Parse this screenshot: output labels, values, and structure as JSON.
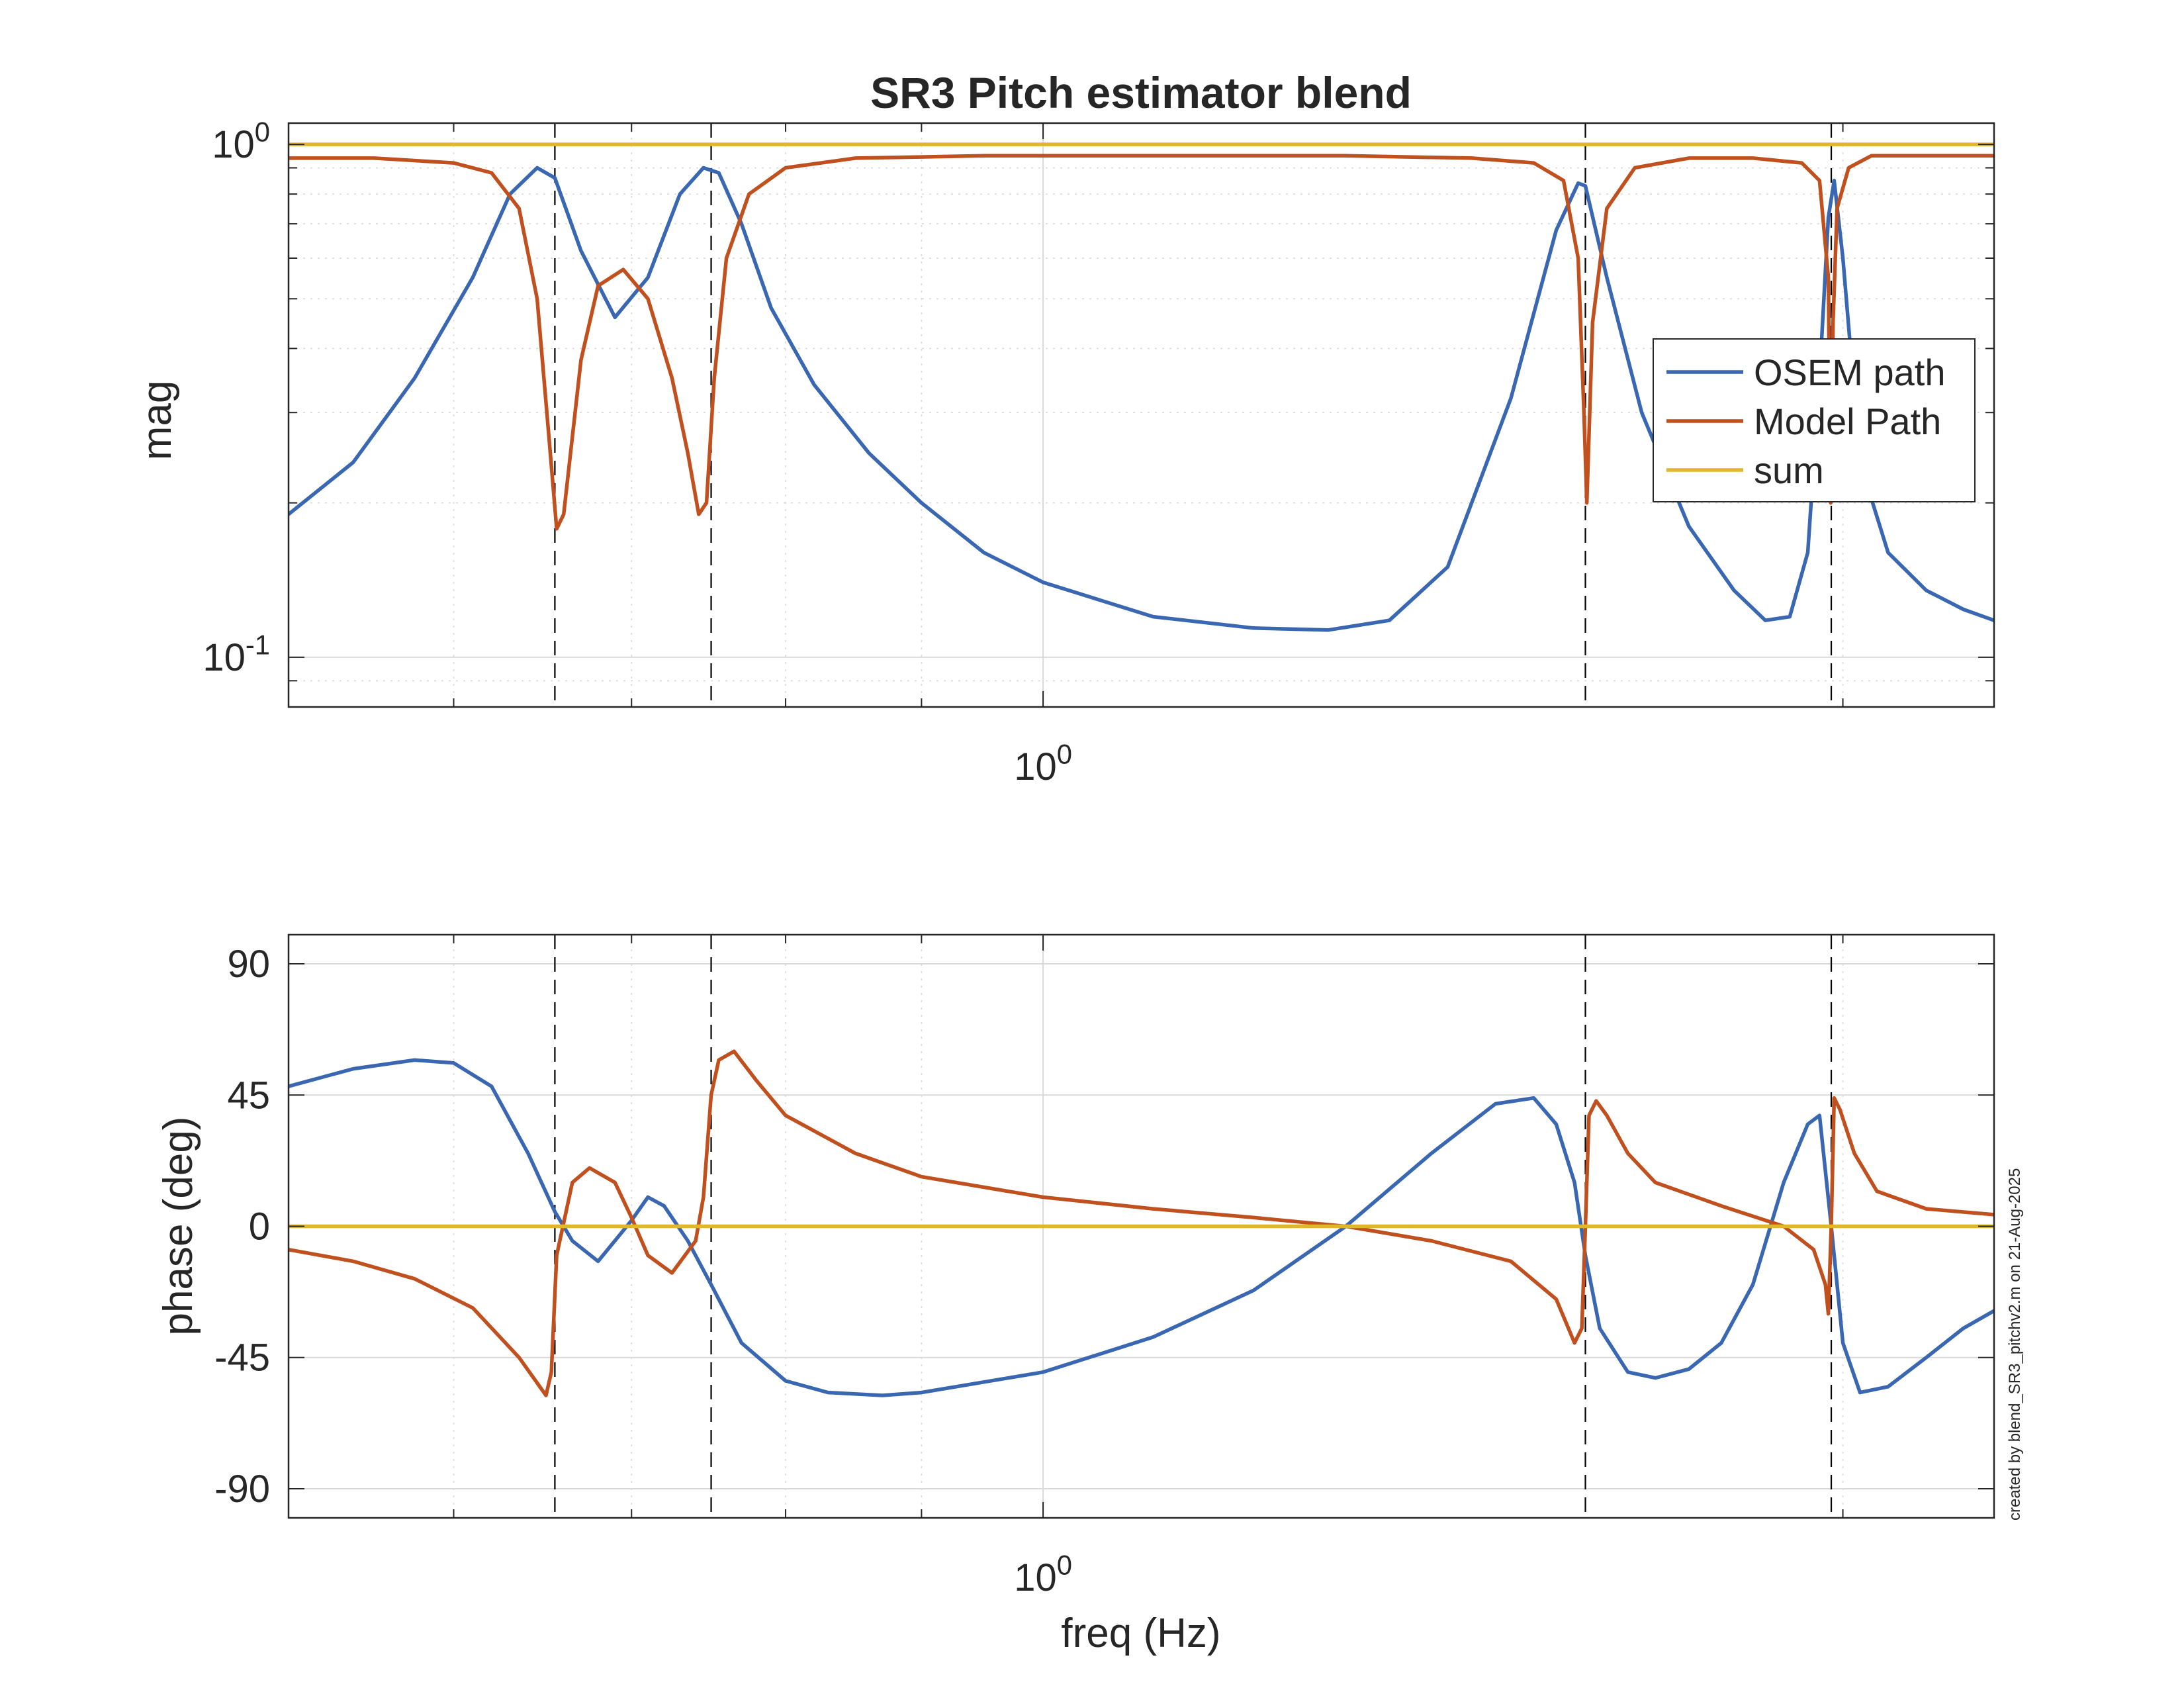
{
  "figure": {
    "title": "SR3 Pitch estimator blend",
    "footer_note": "created by blend_SR3_pitchv2.m on 21-Aug-2025"
  },
  "colors": {
    "osem": "#3a67b1",
    "model": "#c0501e",
    "sum": "#e1b52f",
    "grid": "#d9d9d9",
    "axis": "#262626",
    "marker_lines": "#000000"
  },
  "chart_data": [
    {
      "type": "line",
      "panel": "magnitude",
      "title": "SR3 Pitch estimator blend",
      "xlabel": "",
      "ylabel": "mag",
      "xscale": "log",
      "yscale": "log",
      "xlim": [
        0.52,
        2.28
      ],
      "ylim": [
        0.08,
        1.1
      ],
      "xticks": [
        1.0
      ],
      "xtick_labels": [
        "10^0"
      ],
      "yticks": [
        0.1,
        1.0
      ],
      "ytick_labels": [
        "10^-1",
        "10^0"
      ],
      "grid": true,
      "legend": {
        "position": "right-middle",
        "entries": [
          "OSEM path",
          "Model Path",
          "sum"
        ]
      },
      "vertical_markers": [
        0.655,
        0.75,
        1.6,
        1.98
      ],
      "series": [
        {
          "name": "OSEM path",
          "x": [
            0.52,
            0.55,
            0.58,
            0.61,
            0.63,
            0.645,
            0.655,
            0.67,
            0.69,
            0.71,
            0.73,
            0.745,
            0.755,
            0.77,
            0.79,
            0.82,
            0.86,
            0.9,
            0.95,
            1.0,
            1.1,
            1.2,
            1.28,
            1.35,
            1.42,
            1.5,
            1.56,
            1.59,
            1.6,
            1.63,
            1.68,
            1.75,
            1.82,
            1.87,
            1.91,
            1.94,
            1.96,
            1.975,
            1.985,
            2.0,
            2.03,
            2.08,
            2.15,
            2.22,
            2.28
          ],
          "y": [
            0.19,
            0.24,
            0.35,
            0.55,
            0.8,
            0.9,
            0.86,
            0.62,
            0.46,
            0.55,
            0.8,
            0.9,
            0.88,
            0.7,
            0.48,
            0.34,
            0.25,
            0.2,
            0.16,
            0.14,
            0.12,
            0.114,
            0.113,
            0.118,
            0.15,
            0.32,
            0.68,
            0.84,
            0.83,
            0.55,
            0.3,
            0.18,
            0.135,
            0.118,
            0.12,
            0.16,
            0.35,
            0.72,
            0.85,
            0.6,
            0.24,
            0.16,
            0.135,
            0.124,
            0.118
          ]
        },
        {
          "name": "Model Path",
          "x": [
            0.52,
            0.56,
            0.6,
            0.62,
            0.635,
            0.645,
            0.652,
            0.656,
            0.66,
            0.67,
            0.68,
            0.695,
            0.71,
            0.725,
            0.735,
            0.742,
            0.747,
            0.752,
            0.76,
            0.775,
            0.8,
            0.85,
            0.95,
            1.1,
            1.3,
            1.45,
            1.53,
            1.57,
            1.59,
            1.598,
            1.602,
            1.61,
            1.63,
            1.67,
            1.75,
            1.85,
            1.93,
            1.96,
            1.975,
            1.979,
            1.983,
            1.99,
            2.01,
            2.05,
            2.15,
            2.28
          ],
          "y": [
            0.94,
            0.94,
            0.92,
            0.88,
            0.75,
            0.5,
            0.26,
            0.178,
            0.19,
            0.38,
            0.53,
            0.57,
            0.5,
            0.35,
            0.25,
            0.19,
            0.2,
            0.35,
            0.6,
            0.8,
            0.9,
            0.94,
            0.95,
            0.95,
            0.95,
            0.94,
            0.92,
            0.85,
            0.6,
            0.3,
            0.2,
            0.45,
            0.75,
            0.9,
            0.94,
            0.94,
            0.92,
            0.85,
            0.55,
            0.2,
            0.45,
            0.75,
            0.9,
            0.95,
            0.95,
            0.95
          ]
        },
        {
          "name": "sum",
          "x": [
            0.52,
            2.28
          ],
          "y": [
            1.0,
            1.0
          ]
        }
      ]
    },
    {
      "type": "line",
      "panel": "phase",
      "title": "",
      "xlabel": "freq (Hz)",
      "ylabel": "phase (deg)",
      "xscale": "log",
      "yscale": "linear",
      "xlim": [
        0.52,
        2.28
      ],
      "ylim": [
        -100,
        100
      ],
      "xticks": [
        1.0
      ],
      "xtick_labels": [
        "10^0"
      ],
      "yticks": [
        -90,
        -45,
        0,
        45,
        90
      ],
      "ytick_labels": [
        "-90",
        "-45",
        "0",
        "45",
        "90"
      ],
      "grid": true,
      "vertical_markers": [
        0.655,
        0.75,
        1.6,
        1.98
      ],
      "series": [
        {
          "name": "OSEM path",
          "x": [
            0.52,
            0.55,
            0.58,
            0.6,
            0.62,
            0.64,
            0.655,
            0.665,
            0.68,
            0.7,
            0.71,
            0.72,
            0.735,
            0.75,
            0.77,
            0.8,
            0.83,
            0.87,
            0.9,
            1.0,
            1.1,
            1.2,
            1.3,
            1.4,
            1.48,
            1.53,
            1.56,
            1.585,
            1.6,
            1.62,
            1.66,
            1.7,
            1.75,
            1.8,
            1.85,
            1.9,
            1.94,
            1.96,
            1.98,
            2.0,
            2.03,
            2.08,
            2.15,
            2.22,
            2.28
          ],
          "y": [
            48,
            54,
            57,
            56,
            48,
            25,
            5,
            -5,
            -12,
            2,
            10,
            7,
            -5,
            -20,
            -40,
            -53,
            -57,
            -58,
            -57,
            -50,
            -38,
            -22,
            0,
            25,
            42,
            44,
            35,
            15,
            -10,
            -35,
            -50,
            -52,
            -49,
            -40,
            -20,
            15,
            35,
            38,
            0,
            -40,
            -57,
            -55,
            -45,
            -35,
            -29
          ]
        },
        {
          "name": "Model Path",
          "x": [
            0.52,
            0.55,
            0.58,
            0.61,
            0.635,
            0.65,
            0.653,
            0.656,
            0.665,
            0.675,
            0.69,
            0.7,
            0.71,
            0.725,
            0.74,
            0.745,
            0.75,
            0.755,
            0.765,
            0.78,
            0.8,
            0.85,
            0.9,
            1.0,
            1.1,
            1.2,
            1.3,
            1.4,
            1.5,
            1.56,
            1.585,
            1.595,
            1.6,
            1.605,
            1.615,
            1.63,
            1.66,
            1.7,
            1.8,
            1.9,
            1.95,
            1.97,
            1.975,
            1.98,
            1.985,
            1.995,
            2.02,
            2.06,
            2.15,
            2.28
          ],
          "y": [
            -8,
            -12,
            -18,
            -28,
            -45,
            -58,
            -50,
            -10,
            15,
            20,
            15,
            3,
            -10,
            -16,
            -5,
            10,
            45,
            57,
            60,
            50,
            38,
            25,
            17,
            10,
            6,
            3,
            0,
            -5,
            -12,
            -25,
            -40,
            -35,
            0,
            38,
            43,
            38,
            25,
            15,
            7,
            0,
            -8,
            -20,
            -30,
            0,
            44,
            40,
            25,
            12,
            6,
            4
          ]
        },
        {
          "name": "sum",
          "x": [
            0.52,
            2.28
          ],
          "y": [
            0,
            0
          ]
        }
      ]
    }
  ]
}
